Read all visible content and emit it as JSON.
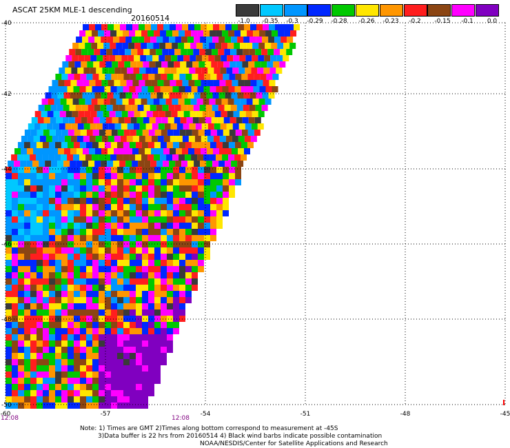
{
  "header": {
    "title": "ASCAT 25KM MLE-1 descending",
    "date": "20160514"
  },
  "colorbar": {
    "colors": [
      "#3a3a3a",
      "#00c8ff",
      "#0096ff",
      "#0028ff",
      "#00c800",
      "#ffe600",
      "#ff9600",
      "#ff1e1e",
      "#8b4513",
      "#ff00ff",
      "#8000c0"
    ],
    "labels": [
      "-1.0",
      "-0.35",
      "-0.3",
      "-0.29",
      "-0.28",
      "-0.26",
      "-0.23",
      "-0.2",
      "-0.15",
      "-0.1",
      "0.0"
    ]
  },
  "axes": {
    "lat_labels": [
      "-40",
      "-42",
      "-44",
      "-46",
      "-48",
      "-50"
    ],
    "lon_labels": [
      "-60",
      "-57",
      "-54",
      "-51",
      "-48",
      "-45"
    ]
  },
  "times": [
    "12:08",
    "12:08"
  ],
  "notes": {
    "line1": "Note: 1) Times are GMT 2)Times along bottom correspond to measurement at -45S",
    "line2": "3)Data buffer is 22 hrs from 20160514 4) Black wind barbs indicate possible contamination",
    "line3": "NOAA/NESDIS/Center for Satellite Applications and Research"
  },
  "swath_color_weights": {
    "north": [
      "#ff1e1e",
      "#ff9600",
      "#ffe600",
      "#0028ff",
      "#00c800",
      "#ff00ff",
      "#8b4513",
      "#0096ff"
    ],
    "south": [
      "#8000c0",
      "#ff00ff",
      "#ffe600",
      "#0028ff",
      "#ff1e1e",
      "#00c800",
      "#ff9600"
    ]
  }
}
